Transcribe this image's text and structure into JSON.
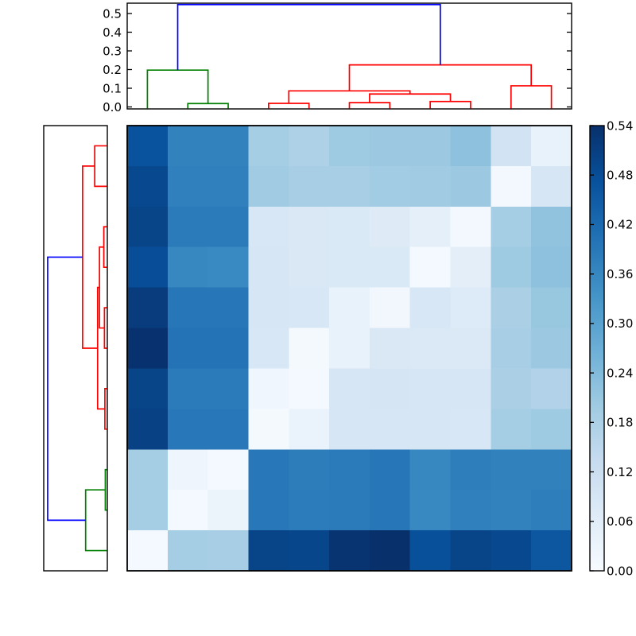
{
  "chart_data": {
    "type": "heatmap",
    "subtype": "clustermap-with-dendrograms",
    "title": "",
    "n_rows": 11,
    "n_cols": 11,
    "vmin": 0.0,
    "vmax": 0.54,
    "grid": false,
    "colormap": {
      "name": "Blues",
      "anchors": [
        [
          0.0,
          "#f7fbff"
        ],
        [
          0.125,
          "#deebf7"
        ],
        [
          0.25,
          "#c6dbef"
        ],
        [
          0.375,
          "#9ecae1"
        ],
        [
          0.5,
          "#6baed6"
        ],
        [
          0.625,
          "#4292c6"
        ],
        [
          0.75,
          "#2171b5"
        ],
        [
          0.875,
          "#08519c"
        ],
        [
          1.0,
          "#08306b"
        ]
      ]
    },
    "matrix": [
      [
        0.47,
        0.37,
        0.37,
        0.19,
        0.175,
        0.2,
        0.205,
        0.205,
        0.225,
        0.1,
        0.04
      ],
      [
        0.49,
        0.375,
        0.375,
        0.198,
        0.188,
        0.188,
        0.195,
        0.197,
        0.205,
        0.012,
        0.09
      ],
      [
        0.5,
        0.385,
        0.385,
        0.085,
        0.08,
        0.078,
        0.068,
        0.05,
        0.012,
        0.19,
        0.22
      ],
      [
        0.48,
        0.36,
        0.355,
        0.088,
        0.08,
        0.078,
        0.078,
        0.01,
        0.055,
        0.2,
        0.225
      ],
      [
        0.515,
        0.395,
        0.395,
        0.09,
        0.085,
        0.04,
        0.015,
        0.085,
        0.07,
        0.18,
        0.21
      ],
      [
        0.535,
        0.4,
        0.4,
        0.085,
        0.008,
        0.04,
        0.08,
        0.075,
        0.077,
        0.185,
        0.205
      ],
      [
        0.5,
        0.385,
        0.385,
        0.02,
        0.01,
        0.09,
        0.092,
        0.088,
        0.088,
        0.18,
        0.17
      ],
      [
        0.505,
        0.39,
        0.39,
        0.008,
        0.035,
        0.087,
        0.09,
        0.087,
        0.083,
        0.19,
        0.2
      ],
      [
        0.19,
        0.025,
        0.01,
        0.39,
        0.38,
        0.385,
        0.395,
        0.36,
        0.378,
        0.373,
        0.373
      ],
      [
        0.19,
        0.01,
        0.03,
        0.39,
        0.382,
        0.385,
        0.395,
        0.357,
        0.375,
        0.37,
        0.378
      ],
      [
        0.01,
        0.19,
        0.185,
        0.5,
        0.495,
        0.53,
        0.54,
        0.475,
        0.5,
        0.49,
        0.46
      ]
    ],
    "link_colors": {
      "green": "#008000",
      "red": "#ff0000",
      "blue": "#0000ff"
    },
    "col_dendrogram": {
      "n_leaves": 11,
      "axis_tick_labels": [
        "0.0",
        "0.1",
        "0.2",
        "0.3",
        "0.4",
        "0.5"
      ],
      "axis_tick_values": [
        0.0,
        0.1,
        0.2,
        0.3,
        0.4,
        0.5
      ],
      "merges": [
        {
          "a": "L2",
          "b": "L3",
          "h": 0.018,
          "c": "green"
        },
        {
          "a": "L1",
          "b": "M0",
          "h": 0.197,
          "c": "green"
        },
        {
          "a": "L4",
          "b": "L5",
          "h": 0.019,
          "c": "red"
        },
        {
          "a": "L6",
          "b": "L7",
          "h": 0.023,
          "c": "red"
        },
        {
          "a": "L8",
          "b": "L9",
          "h": 0.029,
          "c": "red"
        },
        {
          "a": "M3",
          "b": "M4",
          "h": 0.069,
          "c": "red"
        },
        {
          "a": "M2",
          "b": "M5",
          "h": 0.086,
          "c": "red"
        },
        {
          "a": "L10",
          "b": "L11",
          "h": 0.113,
          "c": "red"
        },
        {
          "a": "M6",
          "b": "M7",
          "h": 0.225,
          "c": "red"
        },
        {
          "a": "M1",
          "b": "M8",
          "h": 0.548,
          "c": "blue"
        }
      ]
    },
    "row_dendrogram": {
      "n_leaves": 11,
      "merges": [
        {
          "a": "L1",
          "b": "L2",
          "h": 0.113,
          "c": "red"
        },
        {
          "a": "L3",
          "b": "L4",
          "h": 0.029,
          "c": "red"
        },
        {
          "a": "L5",
          "b": "L6",
          "h": 0.023,
          "c": "red"
        },
        {
          "a": "M1",
          "b": "M2",
          "h": 0.069,
          "c": "red"
        },
        {
          "a": "L7",
          "b": "L8",
          "h": 0.019,
          "c": "red"
        },
        {
          "a": "M3",
          "b": "M4",
          "h": 0.086,
          "c": "red"
        },
        {
          "a": "M0",
          "b": "M5",
          "h": 0.225,
          "c": "red"
        },
        {
          "a": "L9",
          "b": "L10",
          "h": 0.015,
          "c": "green"
        },
        {
          "a": "M7",
          "b": "L11",
          "h": 0.197,
          "c": "green"
        },
        {
          "a": "M6",
          "b": "M8",
          "h": 0.548,
          "c": "blue"
        }
      ]
    },
    "colorbar": {
      "tick_labels": [
        "0.00",
        "0.06",
        "0.12",
        "0.18",
        "0.24",
        "0.30",
        "0.36",
        "0.42",
        "0.48",
        "0.54"
      ],
      "tick_values": [
        0.0,
        0.06,
        0.12,
        0.18,
        0.24,
        0.3,
        0.36,
        0.42,
        0.48,
        0.54
      ],
      "orientation": "vertical",
      "position": "right"
    }
  }
}
